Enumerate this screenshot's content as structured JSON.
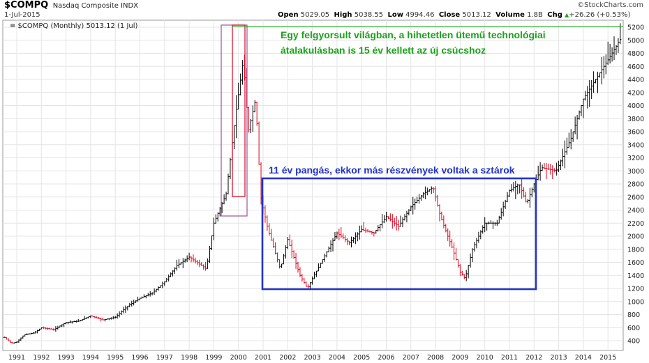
{
  "header": {
    "symbol": "$COMPQ",
    "name": "Nasdaq Composite INDX",
    "date": "1-Jul-2015",
    "open_label": "Open",
    "open": "5029.05",
    "high_label": "High",
    "high": "5038.55",
    "low_label": "Low",
    "low": "4994.46",
    "close_label": "Close",
    "close": "5013.12",
    "volume_label": "Volume",
    "volume": "1.8B",
    "chg_label": "Chg",
    "chg": "+26.26 (+0.53%)",
    "up_icon": "up-arrow-icon",
    "brand": "©StockCharts.com"
  },
  "legend": "≡ $COMPQ (Monthly) 5013.12 (1 Jul)",
  "annotations": {
    "green_text_line1": "Egy felgyorsult világban, a hihetetlen ütemű technológiai",
    "green_text_line2": "átalakulásban is 15 év kellett az új csúcshoz",
    "blue_text": "11 év pangás, ekkor más részvények voltak a sztárok"
  },
  "colors": {
    "up": "#000000",
    "down": "#e0001a",
    "green": "#1aa31a",
    "blue": "#2233c8",
    "purple": "#a050a0",
    "grid": "#e4e4e4"
  },
  "chart_data": {
    "type": "line",
    "title": "$COMPQ Nasdaq Composite INDX",
    "xlabel": "",
    "ylabel": "",
    "ylim": [
      300,
      5200
    ],
    "xlim": [
      1990.5,
      2015.6
    ],
    "grid": true,
    "x_ticks": [
      "1991",
      "1992",
      "1993",
      "1994",
      "1995",
      "1996",
      "1997",
      "1998",
      "1999",
      "2000",
      "2001",
      "2002",
      "2003",
      "2004",
      "2005",
      "2006",
      "2007",
      "2008",
      "2009",
      "2010",
      "2011",
      "2012",
      "2013",
      "2014",
      "2015"
    ],
    "y_ticks": [
      400,
      600,
      800,
      1000,
      1200,
      1400,
      1600,
      1800,
      2000,
      2200,
      2400,
      2600,
      2800,
      3000,
      3200,
      3400,
      3600,
      3800,
      4000,
      4200,
      4400,
      4600,
      4800,
      5000,
      5200
    ],
    "series": [
      {
        "values": [
          [
            1990.5,
            450
          ],
          [
            1990.8,
            360
          ],
          [
            1991.0,
            380
          ],
          [
            1991.3,
            490
          ],
          [
            1991.7,
            520
          ],
          [
            1992.0,
            600
          ],
          [
            1992.5,
            570
          ],
          [
            1993.0,
            680
          ],
          [
            1993.5,
            700
          ],
          [
            1994.0,
            780
          ],
          [
            1994.5,
            720
          ],
          [
            1995.0,
            760
          ],
          [
            1995.5,
            930
          ],
          [
            1996.0,
            1050
          ],
          [
            1996.5,
            1130
          ],
          [
            1997.0,
            1300
          ],
          [
            1997.5,
            1550
          ],
          [
            1998.0,
            1680
          ],
          [
            1998.7,
            1500
          ],
          [
            1999.0,
            2200
          ],
          [
            1999.5,
            2650
          ],
          [
            1999.9,
            3900
          ],
          [
            2000.2,
            4700
          ],
          [
            2000.4,
            3600
          ],
          [
            2000.7,
            4100
          ],
          [
            2000.9,
            2600
          ],
          [
            2001.2,
            2100
          ],
          [
            2001.7,
            1500
          ],
          [
            2002.0,
            1950
          ],
          [
            2002.5,
            1400
          ],
          [
            2002.8,
            1200
          ],
          [
            2003.0,
            1350
          ],
          [
            2003.5,
            1700
          ],
          [
            2004.0,
            2050
          ],
          [
            2004.5,
            1900
          ],
          [
            2005.0,
            2100
          ],
          [
            2005.5,
            2050
          ],
          [
            2006.0,
            2300
          ],
          [
            2006.5,
            2150
          ],
          [
            2007.0,
            2450
          ],
          [
            2007.5,
            2650
          ],
          [
            2007.9,
            2750
          ],
          [
            2008.2,
            2300
          ],
          [
            2008.7,
            1800
          ],
          [
            2009.0,
            1450
          ],
          [
            2009.2,
            1350
          ],
          [
            2009.5,
            1800
          ],
          [
            2010.0,
            2200
          ],
          [
            2010.5,
            2200
          ],
          [
            2011.0,
            2700
          ],
          [
            2011.4,
            2800
          ],
          [
            2011.7,
            2500
          ],
          [
            2012.0,
            2800
          ],
          [
            2012.3,
            3050
          ],
          [
            2012.9,
            3000
          ],
          [
            2013.5,
            3500
          ],
          [
            2014.0,
            4100
          ],
          [
            2014.5,
            4400
          ],
          [
            2015.0,
            4700
          ],
          [
            2015.5,
            5013
          ]
        ]
      }
    ]
  }
}
